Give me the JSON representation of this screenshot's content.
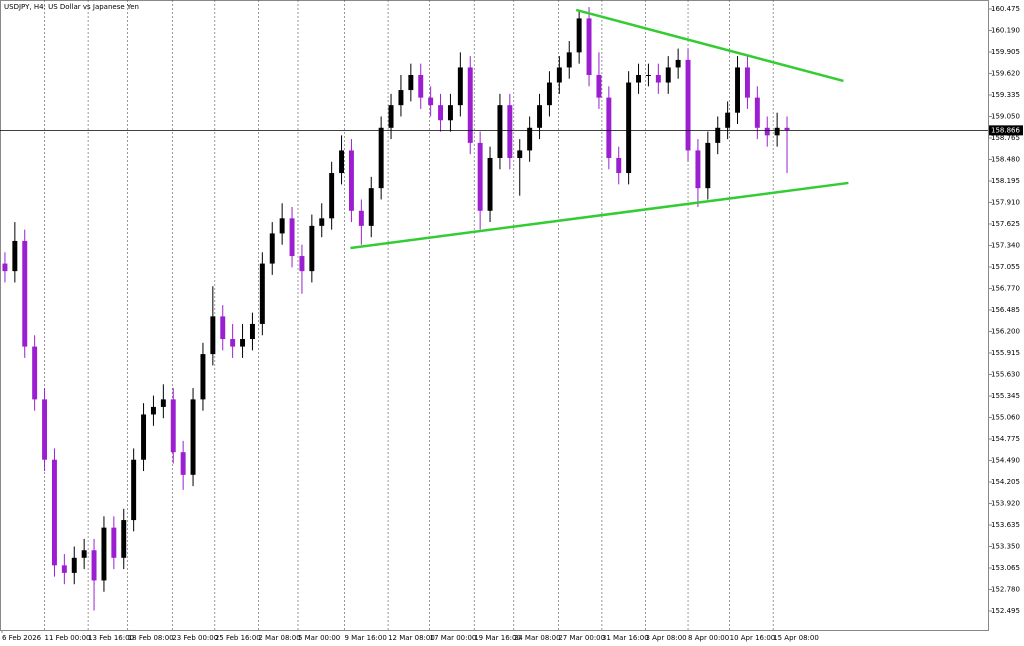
{
  "chart_data": {
    "type": "candlestick",
    "title": "USDJPY, H4:  US Dollar vs Japanese Yen",
    "up_color": "#000000",
    "down_color": "#9b1fd1",
    "trend_color": "#33cc33",
    "grid": true,
    "ylim": [
      152.243,
      160.594
    ],
    "yticks": [
      160.475,
      {
        "value": 160.19,
        "label": "160.190"
      },
      159.905,
      {
        "value": 159.62,
        "label": "159.620"
      },
      159.335,
      {
        "value": 159.05,
        "label": "159.050"
      },
      158.765,
      {
        "value": 158.48,
        "label": "158.480"
      },
      158.195,
      {
        "value": 157.91,
        "label": "157.910"
      },
      157.625,
      {
        "value": 157.34,
        "label": "157.340"
      },
      157.055,
      {
        "value": 156.77,
        "label": "156.770"
      },
      156.485,
      {
        "value": 156.2,
        "label": "156.200"
      },
      155.915,
      {
        "value": 155.63,
        "label": "155.630"
      },
      155.345,
      {
        "value": 155.06,
        "label": "155.060"
      },
      154.775,
      {
        "value": 154.49,
        "label": "154.490"
      },
      154.205,
      {
        "value": 153.92,
        "label": "153.920"
      },
      153.635,
      {
        "value": 153.35,
        "label": "153.350"
      },
      153.065,
      {
        "value": 152.78,
        "label": "152.780"
      },
      152.495
    ],
    "xlim": [
      -0.5,
      99.3
    ],
    "xticks": [
      {
        "value": -0.3,
        "label": "6 Feb 2026"
      },
      {
        "value": 4.0,
        "label": "11 Feb 00:00"
      },
      {
        "value": 8.4,
        "label": "13 Feb 16:00"
      },
      {
        "value": 12.4,
        "label": "18 Feb 08:00"
      },
      {
        "value": 16.9,
        "label": "23 Feb 00:00"
      },
      {
        "value": 21.2,
        "label": "25 Feb 16:00"
      },
      {
        "value": 25.6,
        "label": "2 Mar 08:00"
      },
      {
        "value": 29.6,
        "label": "5 Mar 00:00"
      },
      {
        "value": 34.3,
        "label": "9 Mar 16:00"
      },
      {
        "value": 38.7,
        "label": "12 Mar 08:00"
      },
      {
        "value": 42.9,
        "label": "17 Mar 00:00"
      },
      {
        "value": 47.4,
        "label": "19 Mar 16:00"
      },
      {
        "value": 51.4,
        "label": "24 Mar 08:00"
      },
      {
        "value": 55.9,
        "label": "27 Mar 00:00"
      },
      {
        "value": 60.3,
        "label": "31 Mar 16:00"
      },
      {
        "value": 64.7,
        "label": "3 Apr 08:00"
      },
      {
        "value": 69.0,
        "label": "8 Apr 00:00"
      },
      {
        "value": 73.2,
        "label": "10 Apr 16:00"
      },
      {
        "value": 77.6,
        "label": "15 Apr 08:00"
      }
    ],
    "current_price": 158.866,
    "trendlines": [
      {
        "x": [
          57.7,
          84.7
        ],
        "y": [
          160.462,
          159.521
        ]
      },
      {
        "x": [
          34.9,
          85.2
        ],
        "y": [
          157.307,
          158.169
        ]
      }
    ],
    "candles": [
      [
        157.1,
        157.25,
        156.85,
        157.0
      ],
      [
        157.0,
        157.65,
        156.85,
        157.4
      ],
      [
        157.4,
        157.55,
        155.85,
        156.0
      ],
      [
        156.0,
        156.15,
        155.15,
        155.3
      ],
      [
        155.3,
        155.45,
        154.35,
        154.5
      ],
      [
        154.5,
        154.65,
        152.95,
        153.1
      ],
      [
        153.1,
        153.25,
        152.85,
        153.0
      ],
      [
        153.0,
        153.35,
        152.85,
        153.2
      ],
      [
        153.2,
        153.45,
        153.05,
        153.3
      ],
      [
        153.3,
        153.45,
        152.5,
        152.9
      ],
      [
        152.9,
        153.75,
        152.75,
        153.6
      ],
      [
        153.6,
        153.75,
        153.05,
        153.2
      ],
      [
        153.2,
        153.85,
        153.05,
        153.7
      ],
      [
        153.7,
        154.65,
        153.55,
        154.5
      ],
      [
        154.5,
        155.25,
        154.35,
        155.1
      ],
      [
        155.1,
        155.35,
        154.95,
        155.2
      ],
      [
        155.2,
        155.5,
        155.05,
        155.3
      ],
      [
        155.3,
        155.45,
        154.45,
        154.6
      ],
      [
        154.6,
        154.75,
        154.1,
        154.3
      ],
      [
        154.3,
        155.45,
        154.15,
        155.3
      ],
      [
        155.3,
        156.05,
        155.15,
        155.9
      ],
      [
        155.9,
        156.8,
        155.75,
        156.4
      ],
      [
        156.4,
        156.55,
        155.95,
        156.1
      ],
      [
        156.1,
        156.3,
        155.85,
        156.0
      ],
      [
        156.0,
        156.3,
        155.85,
        156.1
      ],
      [
        156.1,
        156.45,
        155.95,
        156.3
      ],
      [
        156.3,
        157.25,
        156.15,
        157.1
      ],
      [
        157.1,
        157.65,
        156.95,
        157.5
      ],
      [
        157.5,
        157.9,
        157.35,
        157.7
      ],
      [
        157.7,
        157.85,
        157.05,
        157.2
      ],
      [
        157.2,
        157.35,
        156.7,
        157.0
      ],
      [
        157.0,
        157.75,
        156.85,
        157.6
      ],
      [
        157.6,
        157.9,
        157.45,
        157.7
      ],
      [
        157.7,
        158.45,
        157.55,
        158.3
      ],
      [
        158.3,
        158.8,
        158.15,
        158.6
      ],
      [
        158.6,
        158.75,
        157.65,
        157.8
      ],
      [
        157.8,
        157.95,
        157.35,
        157.6
      ],
      [
        157.6,
        158.25,
        157.45,
        158.1
      ],
      [
        158.1,
        159.05,
        157.95,
        158.9
      ],
      [
        158.9,
        159.35,
        158.75,
        159.2
      ],
      [
        159.2,
        159.6,
        159.05,
        159.4
      ],
      [
        159.4,
        159.75,
        159.25,
        159.6
      ],
      [
        159.6,
        159.75,
        159.15,
        159.3
      ],
      [
        159.3,
        159.45,
        159.05,
        159.2
      ],
      [
        159.2,
        159.35,
        158.85,
        159.0
      ],
      [
        159.0,
        159.35,
        158.85,
        159.2
      ],
      [
        159.2,
        159.9,
        159.05,
        159.7
      ],
      [
        159.7,
        159.85,
        158.55,
        158.7
      ],
      [
        158.7,
        158.85,
        157.55,
        157.8
      ],
      [
        157.8,
        158.65,
        157.65,
        158.5
      ],
      [
        158.5,
        159.35,
        158.35,
        159.2
      ],
      [
        159.2,
        159.35,
        158.35,
        158.5
      ],
      [
        158.5,
        158.75,
        158.0,
        158.6
      ],
      [
        158.6,
        159.05,
        158.45,
        158.9
      ],
      [
        158.9,
        159.35,
        158.75,
        159.2
      ],
      [
        159.2,
        159.65,
        159.05,
        159.5
      ],
      [
        159.5,
        159.85,
        159.35,
        159.7
      ],
      [
        159.7,
        160.05,
        159.55,
        159.9
      ],
      [
        159.9,
        160.45,
        159.75,
        160.35
      ],
      [
        160.35,
        160.5,
        159.45,
        159.6
      ],
      [
        159.6,
        159.9,
        159.15,
        159.3
      ],
      [
        159.3,
        159.45,
        158.35,
        158.5
      ],
      [
        158.5,
        158.65,
        158.15,
        158.3
      ],
      [
        158.3,
        159.65,
        158.15,
        159.5
      ],
      [
        159.5,
        159.75,
        159.35,
        159.6
      ],
      [
        159.6,
        159.75,
        159.45,
        159.6
      ],
      [
        159.6,
        159.75,
        159.35,
        159.5
      ],
      [
        159.5,
        159.85,
        159.35,
        159.7
      ],
      [
        159.7,
        159.95,
        159.55,
        159.8
      ],
      [
        159.8,
        159.95,
        158.45,
        158.6
      ],
      [
        158.6,
        158.75,
        157.85,
        158.1
      ],
      [
        158.1,
        158.85,
        157.95,
        158.7
      ],
      [
        158.7,
        159.05,
        158.55,
        158.9
      ],
      [
        158.9,
        159.25,
        158.75,
        159.1
      ],
      [
        159.1,
        159.85,
        158.95,
        159.7
      ],
      [
        159.7,
        159.85,
        159.15,
        159.3
      ],
      [
        159.3,
        159.45,
        158.75,
        158.9
      ],
      [
        158.9,
        159.05,
        158.65,
        158.8
      ],
      [
        158.8,
        159.1,
        158.65,
        158.9
      ],
      [
        158.9,
        159.05,
        158.3,
        158.87
      ]
    ]
  }
}
